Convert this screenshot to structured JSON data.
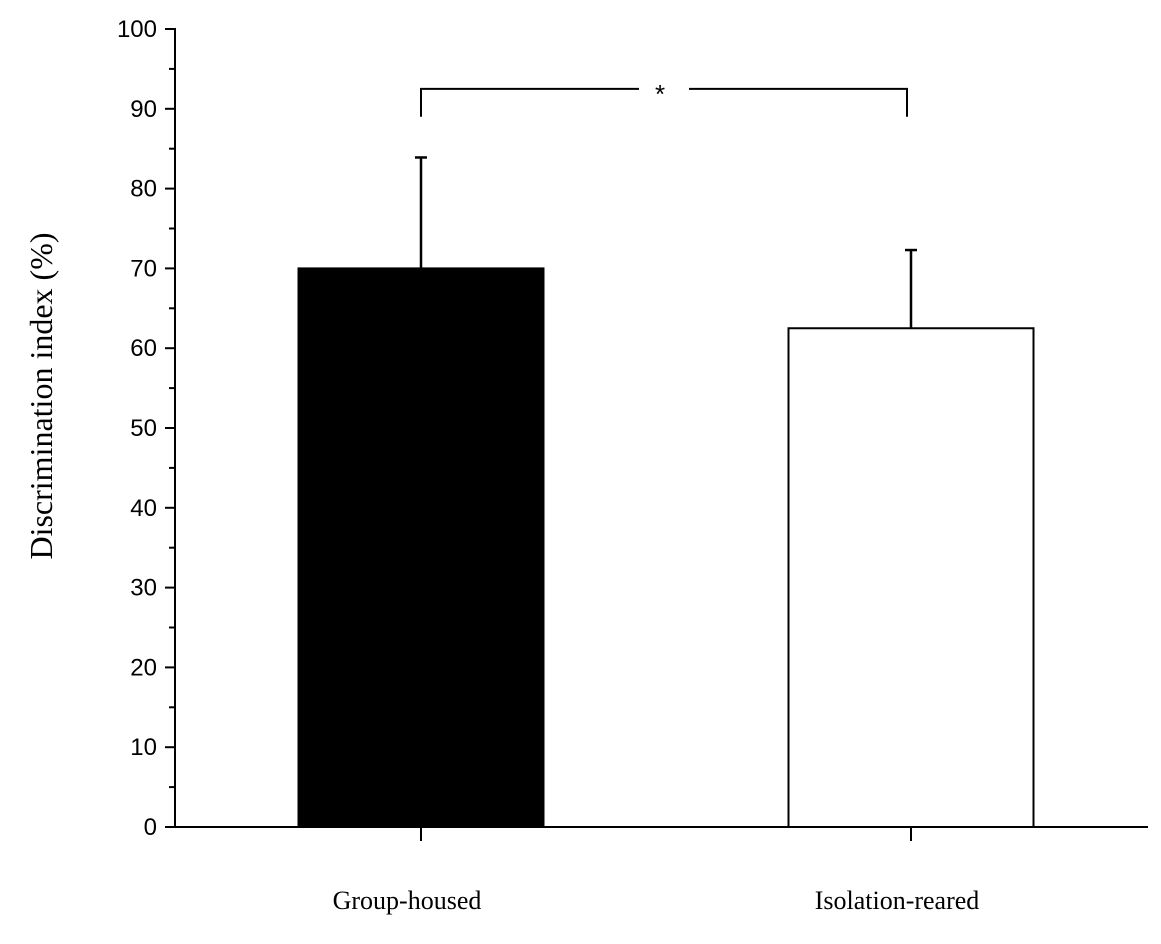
{
  "chart_data": {
    "type": "bar",
    "title": "",
    "xlabel": "",
    "ylabel": "Discrimination index (%)",
    "ylim": [
      0,
      100
    ],
    "yticks": [
      0,
      10,
      20,
      30,
      40,
      50,
      60,
      70,
      80,
      90,
      100
    ],
    "y_minor_step": 5,
    "grid": false,
    "legend": "none",
    "categories": [
      "Group-housed",
      "Isolation-reared"
    ],
    "values": [
      70,
      62.5
    ],
    "error_upper": [
      13.9,
      9.8
    ],
    "bar_fill": [
      "#000000",
      "#ffffff"
    ],
    "bar_stroke": "#000000",
    "significance": {
      "between": [
        "Group-housed",
        "Isolation-reared"
      ],
      "label": "*",
      "level": 92.5
    }
  }
}
